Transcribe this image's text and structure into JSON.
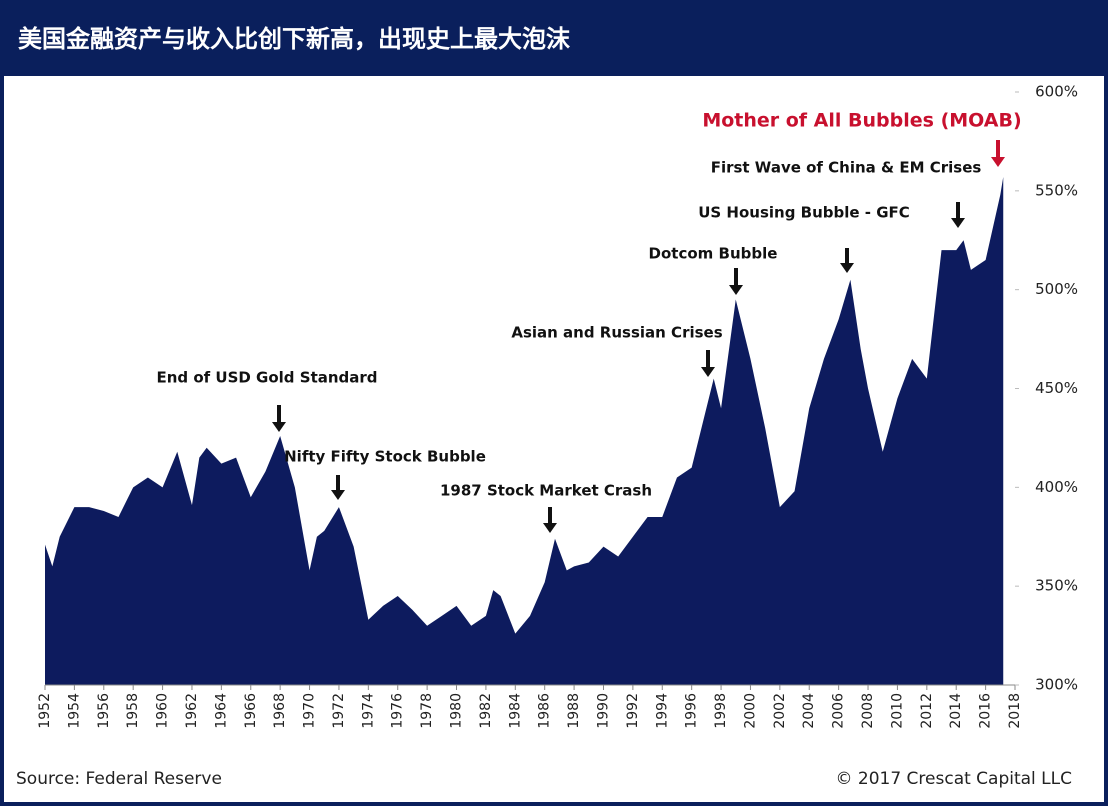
{
  "chart_data": {
    "type": "area",
    "title": "美国金融资产与收入比创下新高，出现史上最大泡沫",
    "source": "Source: Federal Reserve",
    "copyright": "© 2017 Crescat Capital LLC",
    "color": "#0d1b5e",
    "x": [
      1952,
      1952.5,
      1953,
      1954,
      1955,
      1956,
      1957,
      1958,
      1959,
      1960,
      1961,
      1962,
      1962.5,
      1963,
      1964,
      1965,
      1966,
      1967,
      1968,
      1969,
      1970,
      1970.5,
      1971,
      1972,
      1973,
      1974,
      1975,
      1976,
      1977,
      1978,
      1979,
      1980,
      1981,
      1982,
      1982.5,
      1983,
      1984,
      1985,
      1986,
      1986.7,
      1987.5,
      1988,
      1989,
      1990,
      1991,
      1992,
      1993,
      1994,
      1995,
      1996,
      1997,
      1997.5,
      1998,
      1999,
      2000,
      2001,
      2002,
      2003,
      2004,
      2005,
      2006,
      2006.8,
      2007.5,
      2008,
      2009,
      2010,
      2011,
      2012,
      2013,
      2014,
      2014.5,
      2015,
      2016,
      2017,
      2017.2
    ],
    "values": [
      371,
      360,
      375,
      390,
      390,
      388,
      385,
      400,
      405,
      400,
      418,
      391,
      415,
      420,
      412,
      415,
      395,
      408,
      426,
      400,
      358,
      375,
      378,
      390,
      370,
      333,
      340,
      345,
      338,
      330,
      335,
      340,
      330,
      335,
      348,
      345,
      326,
      335,
      352,
      374,
      358,
      360,
      362,
      370,
      365,
      375,
      385,
      385,
      405,
      410,
      440,
      455,
      440,
      495,
      465,
      430,
      390,
      398,
      440,
      465,
      485,
      505,
      470,
      450,
      418,
      445,
      465,
      455,
      520,
      520,
      525,
      510,
      515,
      548,
      557
    ],
    "xlim": [
      1952,
      2018
    ],
    "xticks": [
      1952,
      1954,
      1956,
      1958,
      1960,
      1962,
      1964,
      1966,
      1968,
      1970,
      1972,
      1974,
      1976,
      1978,
      1980,
      1982,
      1984,
      1986,
      1988,
      1990,
      1992,
      1994,
      1996,
      1998,
      2000,
      2002,
      2004,
      2006,
      2008,
      2010,
      2012,
      2014,
      2016,
      2018
    ],
    "ylim": [
      300,
      600
    ],
    "yticks": [
      {
        "value": 300,
        "label": "300%"
      },
      {
        "value": 350,
        "label": "350%"
      },
      {
        "value": 400,
        "label": "400%"
      },
      {
        "value": 450,
        "label": "450%"
      },
      {
        "value": 500,
        "label": "500%"
      },
      {
        "value": 550,
        "label": "550%"
      },
      {
        "value": 600,
        "label": "600%"
      }
    ],
    "annotations": [
      {
        "text": "End of USD Gold Standard",
        "color": "#111111"
      },
      {
        "text": "Nifty Fifty Stock Bubble",
        "color": "#111111"
      },
      {
        "text": "1987 Stock Market Crash",
        "color": "#111111"
      },
      {
        "text": "Asian and Russian Crises",
        "color": "#111111"
      },
      {
        "text": "Dotcom Bubble",
        "color": "#111111"
      },
      {
        "text": "US Housing Bubble - GFC",
        "color": "#111111"
      },
      {
        "text": "First Wave of China & EM Crises",
        "color": "#111111"
      },
      {
        "text": "Mother of All Bubbles (MOAB)",
        "color": "#c8102e"
      }
    ]
  }
}
